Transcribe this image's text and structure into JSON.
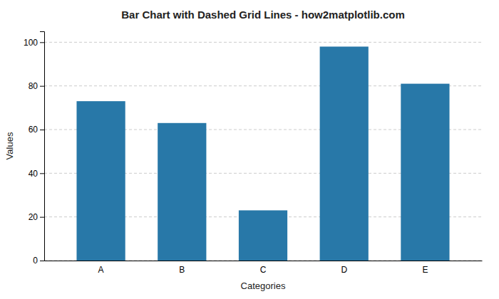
{
  "chart_data": {
    "type": "bar",
    "title": "Bar Chart with Dashed Grid Lines - how2matplotlib.com",
    "xlabel": "Categories",
    "ylabel": "Values",
    "categories": [
      "A",
      "B",
      "C",
      "D",
      "E"
    ],
    "values": [
      73,
      63,
      23,
      98,
      81
    ],
    "color": "#2878a8",
    "ylim": [
      0,
      105
    ],
    "yticks": [
      0,
      20,
      40,
      60,
      80,
      100
    ],
    "grid": true
  }
}
